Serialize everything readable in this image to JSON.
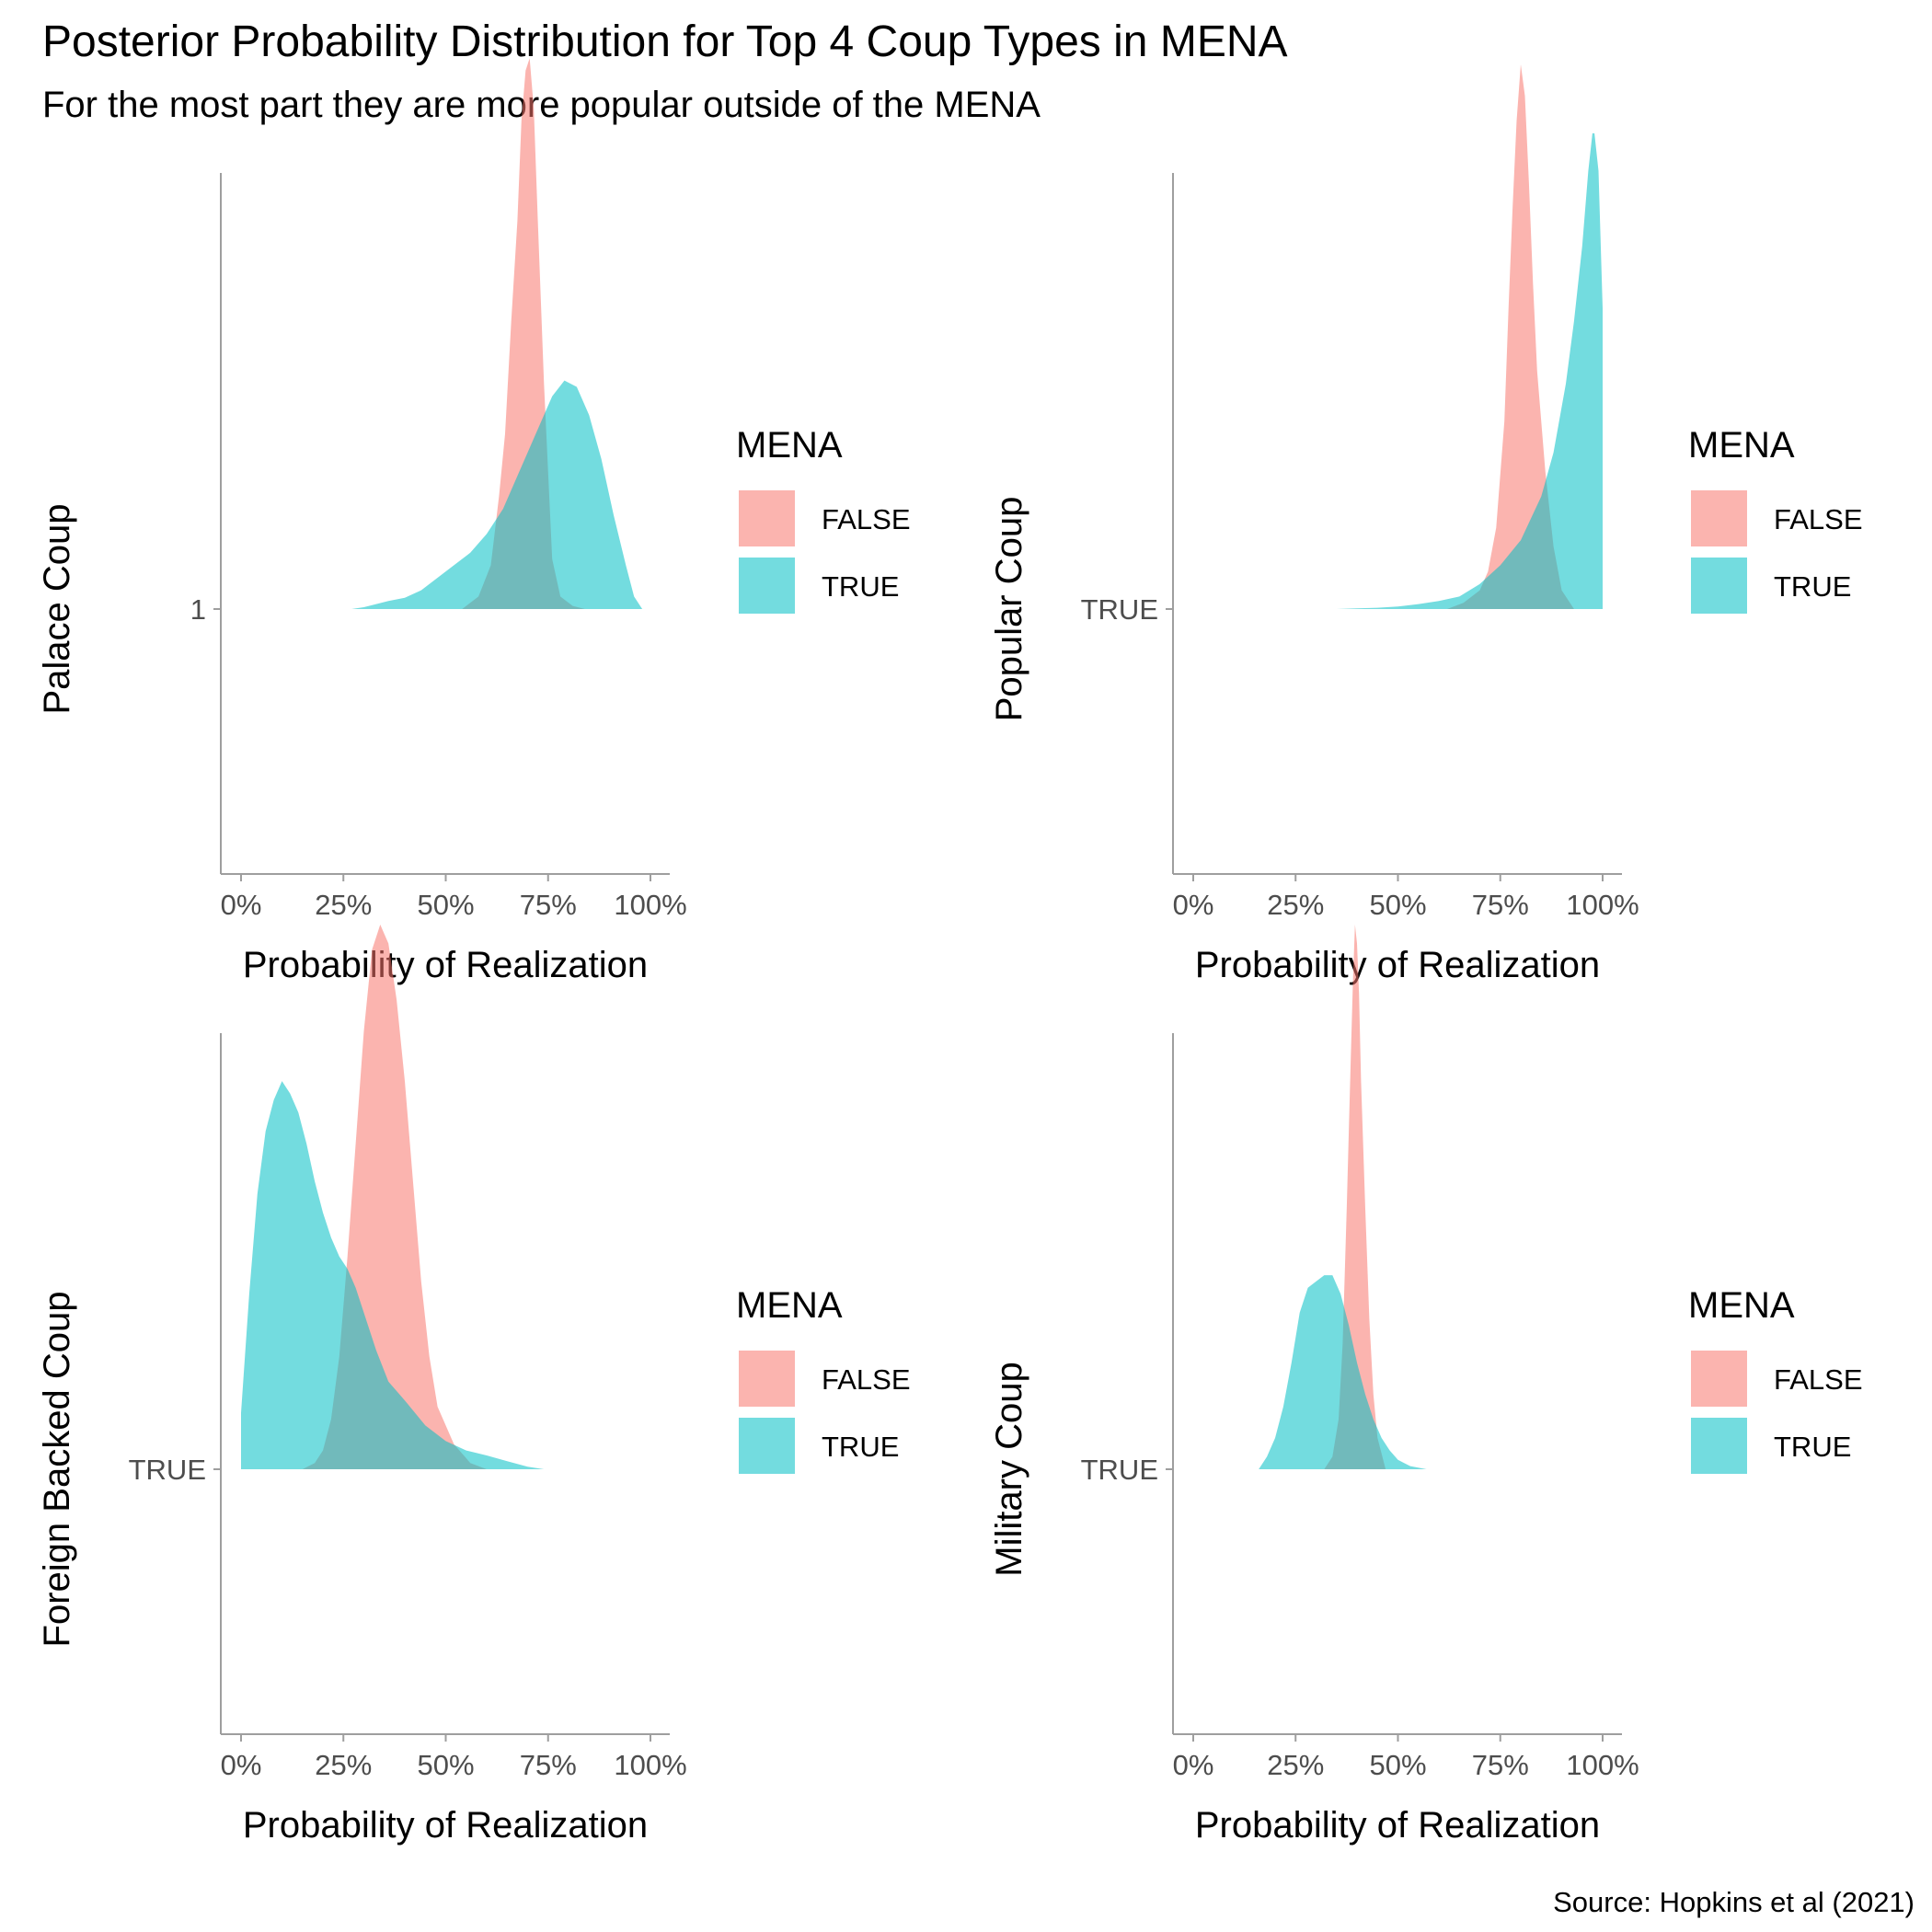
{
  "title": "Posterior Probability Distribution for Top 4 Coup Types in MENA",
  "subtitle": "For the most part they are more popular outside of the MENA",
  "caption": "Source: Hopkins et al (2021)",
  "colors": {
    "FALSE": "#F8766D",
    "TRUE": "#00BFC4",
    "axis": "#9e9e9e",
    "tick_text": "#4d4d4d"
  },
  "chart_data": [
    {
      "type": "area",
      "ylabel": "Palace Coup",
      "xlabel": "Probability of Realization",
      "y_tick": "1",
      "x_ticks": [
        "0%",
        "25%",
        "50%",
        "75%",
        "100%"
      ],
      "xlim": [
        0,
        1
      ],
      "ylim": [
        0,
        0.97
      ],
      "grid": false,
      "legend": {
        "title": "MENA",
        "placement": "right",
        "entries": [
          "FALSE",
          "TRUE"
        ]
      },
      "series": [
        {
          "name": "FALSE",
          "x": [
            0.54,
            0.58,
            0.61,
            0.63,
            0.645,
            0.66,
            0.675,
            0.685,
            0.695,
            0.705,
            0.715,
            0.725,
            0.74,
            0.76,
            0.78,
            0.81,
            0.84
          ],
          "y": [
            0,
            0.02,
            0.07,
            0.18,
            0.28,
            0.46,
            0.62,
            0.78,
            0.86,
            0.88,
            0.8,
            0.62,
            0.36,
            0.08,
            0.02,
            0.005,
            0
          ]
        },
        {
          "name": "TRUE",
          "x": [
            0.27,
            0.3,
            0.33,
            0.36,
            0.4,
            0.44,
            0.48,
            0.52,
            0.56,
            0.6,
            0.64,
            0.68,
            0.72,
            0.76,
            0.79,
            0.82,
            0.85,
            0.88,
            0.91,
            0.94,
            0.96,
            0.98
          ],
          "y": [
            0,
            0.003,
            0.008,
            0.013,
            0.018,
            0.03,
            0.05,
            0.07,
            0.09,
            0.12,
            0.16,
            0.22,
            0.28,
            0.34,
            0.365,
            0.355,
            0.31,
            0.24,
            0.15,
            0.07,
            0.02,
            0
          ]
        }
      ]
    },
    {
      "type": "area",
      "ylabel": "Popular Coup",
      "xlabel": "Probability of Realization",
      "y_tick": "TRUE",
      "x_ticks": [
        "0%",
        "25%",
        "50%",
        "75%",
        "100%"
      ],
      "xlim": [
        0,
        1
      ],
      "ylim": [
        0,
        0.97
      ],
      "grid": false,
      "legend": {
        "title": "MENA",
        "placement": "right",
        "entries": [
          "FALSE",
          "TRUE"
        ]
      },
      "series": [
        {
          "name": "FALSE",
          "x": [
            0.62,
            0.66,
            0.7,
            0.72,
            0.74,
            0.76,
            0.77,
            0.78,
            0.79,
            0.8,
            0.81,
            0.82,
            0.83,
            0.84,
            0.86,
            0.88,
            0.9,
            0.93
          ],
          "y": [
            0,
            0.01,
            0.03,
            0.06,
            0.13,
            0.3,
            0.48,
            0.64,
            0.78,
            0.87,
            0.82,
            0.68,
            0.52,
            0.38,
            0.22,
            0.1,
            0.03,
            0
          ]
        },
        {
          "name": "TRUE",
          "x": [
            0.35,
            0.4,
            0.45,
            0.5,
            0.55,
            0.6,
            0.65,
            0.7,
            0.75,
            0.8,
            0.85,
            0.88,
            0.91,
            0.93,
            0.95,
            0.965,
            0.975,
            0.98,
            0.99,
            1.0,
            1.0
          ],
          "y": [
            0,
            0.001,
            0.002,
            0.004,
            0.008,
            0.013,
            0.02,
            0.04,
            0.07,
            0.11,
            0.18,
            0.25,
            0.36,
            0.46,
            0.58,
            0.7,
            0.76,
            0.76,
            0.7,
            0.48,
            0
          ]
        }
      ]
    },
    {
      "type": "area",
      "ylabel": "Foreign Backed Coup",
      "xlabel": "Probability of Realization",
      "y_tick": "TRUE",
      "x_ticks": [
        "0%",
        "25%",
        "50%",
        "75%",
        "100%"
      ],
      "xlim": [
        0,
        1
      ],
      "ylim": [
        0,
        0.97
      ],
      "grid": false,
      "legend": {
        "title": "MENA",
        "placement": "right",
        "entries": [
          "FALSE",
          "TRUE"
        ]
      },
      "series": [
        {
          "name": "FALSE",
          "x": [
            0.15,
            0.18,
            0.2,
            0.22,
            0.24,
            0.26,
            0.28,
            0.3,
            0.32,
            0.34,
            0.36,
            0.38,
            0.4,
            0.42,
            0.44,
            0.46,
            0.48,
            0.52,
            0.56,
            0.6
          ],
          "y": [
            0,
            0.01,
            0.03,
            0.08,
            0.18,
            0.34,
            0.52,
            0.7,
            0.83,
            0.87,
            0.84,
            0.75,
            0.62,
            0.46,
            0.3,
            0.18,
            0.1,
            0.04,
            0.01,
            0
          ]
        },
        {
          "name": "TRUE",
          "x": [
            0.0,
            0.0,
            0.02,
            0.04,
            0.06,
            0.08,
            0.1,
            0.12,
            0.14,
            0.16,
            0.18,
            0.2,
            0.22,
            0.24,
            0.26,
            0.28,
            0.3,
            0.33,
            0.36,
            0.4,
            0.45,
            0.5,
            0.55,
            0.6,
            0.65,
            0.7,
            0.74
          ],
          "y": [
            0,
            0.09,
            0.28,
            0.44,
            0.54,
            0.59,
            0.62,
            0.6,
            0.57,
            0.52,
            0.46,
            0.41,
            0.37,
            0.34,
            0.32,
            0.29,
            0.25,
            0.19,
            0.14,
            0.11,
            0.07,
            0.045,
            0.03,
            0.022,
            0.013,
            0.004,
            0
          ]
        }
      ]
    },
    {
      "type": "area",
      "ylabel": "Military Coup",
      "xlabel": "Probability of Realization",
      "y_tick": "TRUE",
      "x_ticks": [
        "0%",
        "25%",
        "50%",
        "75%",
        "100%"
      ],
      "xlim": [
        0,
        1
      ],
      "ylim": [
        0,
        0.97
      ],
      "grid": false,
      "legend": {
        "title": "MENA",
        "placement": "right",
        "entries": [
          "FALSE",
          "TRUE"
        ]
      },
      "series": [
        {
          "name": "FALSE",
          "x": [
            0.32,
            0.34,
            0.355,
            0.365,
            0.375,
            0.385,
            0.39,
            0.395,
            0.4,
            0.405,
            0.41,
            0.42,
            0.43,
            0.44,
            0.45,
            0.47
          ],
          "y": [
            0,
            0.02,
            0.08,
            0.2,
            0.42,
            0.66,
            0.78,
            0.87,
            0.84,
            0.76,
            0.62,
            0.42,
            0.24,
            0.12,
            0.05,
            0
          ]
        },
        {
          "name": "TRUE",
          "x": [
            0.16,
            0.18,
            0.2,
            0.22,
            0.24,
            0.26,
            0.28,
            0.3,
            0.32,
            0.34,
            0.36,
            0.38,
            0.4,
            0.42,
            0.44,
            0.46,
            0.48,
            0.5,
            0.53,
            0.57
          ],
          "y": [
            0,
            0.02,
            0.05,
            0.1,
            0.17,
            0.25,
            0.29,
            0.3,
            0.31,
            0.31,
            0.28,
            0.23,
            0.17,
            0.12,
            0.08,
            0.05,
            0.03,
            0.015,
            0.005,
            0
          ]
        }
      ]
    }
  ]
}
